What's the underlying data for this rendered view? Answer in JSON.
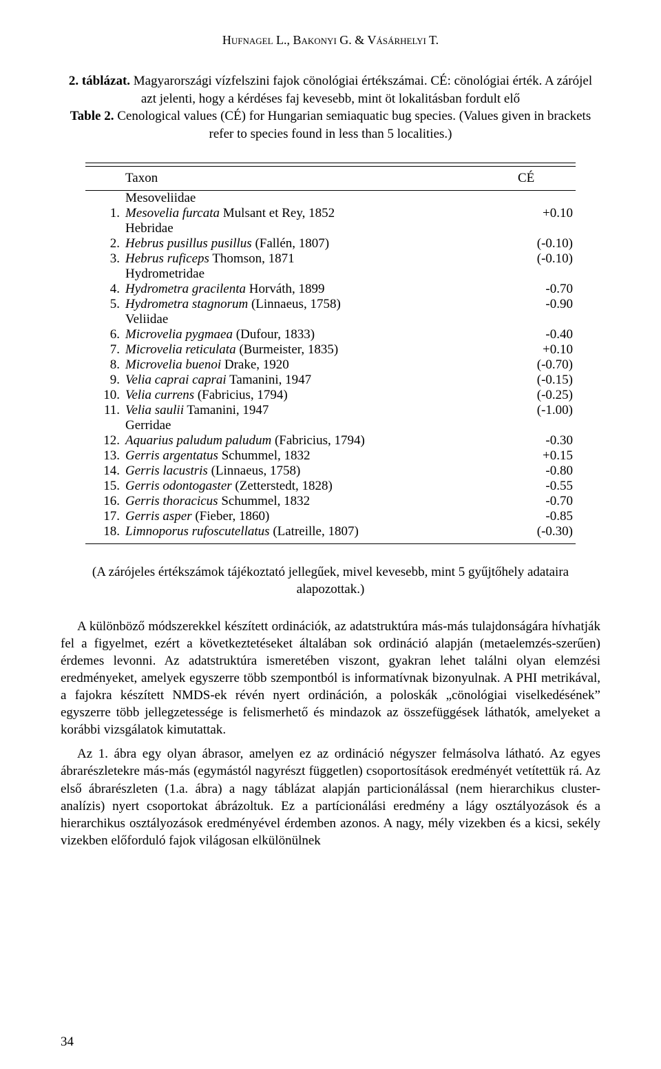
{
  "running_head": "Hufnagel L., Bakonyi G. & Vásárhelyi T.",
  "caption": {
    "hu_title": "2. táblázat.",
    "hu_text": " Magyarországi vízfelszini fajok cönológiai értékszámai. CÉ: cönológiai érték. A zárójel azt jelenti, hogy a kérdéses faj kevesebb, mint öt lokalitásban fordult elő",
    "en_title": "Table 2.",
    "en_text": " Cenological values (CÉ) for Hungarian semiaquatic bug species. (Values given in brackets refer to species found in less than 5 localities.)"
  },
  "table": {
    "head_taxon": "Taxon",
    "head_ce": "CÉ",
    "rows": [
      {
        "kind": "family",
        "label": "Mesoveliidae"
      },
      {
        "kind": "sp",
        "num": "1.",
        "species": "Mesovelia furcata",
        "authority": " Mulsant et Rey, 1852",
        "ce": "+0.10"
      },
      {
        "kind": "family",
        "label": "Hebridae"
      },
      {
        "kind": "sp",
        "num": "2.",
        "species": "Hebrus pusillus pusillus",
        "authority": " (Fallén, 1807)",
        "ce": "(-0.10)"
      },
      {
        "kind": "sp",
        "num": "3.",
        "species": "Hebrus ruficeps",
        "authority": " Thomson, 1871",
        "ce": "(-0.10)"
      },
      {
        "kind": "family",
        "label": "Hydrometridae"
      },
      {
        "kind": "sp",
        "num": "4.",
        "species": "Hydrometra gracilenta",
        "authority": " Horváth, 1899",
        "ce": "-0.70"
      },
      {
        "kind": "sp",
        "num": "5.",
        "species": "Hydrometra stagnorum",
        "authority": " (Linnaeus, 1758)",
        "ce": "-0.90"
      },
      {
        "kind": "family",
        "label": "Veliidae"
      },
      {
        "kind": "sp",
        "num": "6.",
        "species": "Microvelia pygmaea",
        "authority": " (Dufour, 1833)",
        "ce": "-0.40"
      },
      {
        "kind": "sp",
        "num": "7.",
        "species": "Microvelia reticulata",
        "authority": " (Burmeister, 1835)",
        "ce": "+0.10"
      },
      {
        "kind": "sp",
        "num": "8.",
        "species": "Microvelia buenoi",
        "authority": " Drake, 1920",
        "ce": "(-0.70)"
      },
      {
        "kind": "sp",
        "num": "9.",
        "species": "Velia caprai caprai",
        "authority": " Tamanini, 1947",
        "ce": "(-0.15)"
      },
      {
        "kind": "sp",
        "num": "10.",
        "species": "Velia currens",
        "authority": " (Fabricius, 1794)",
        "ce": "(-0.25)"
      },
      {
        "kind": "sp",
        "num": "11.",
        "species": "Velia saulii",
        "authority": " Tamanini, 1947",
        "ce": "(-1.00)"
      },
      {
        "kind": "family",
        "label": "Gerridae"
      },
      {
        "kind": "sp",
        "num": "12.",
        "species": "Aquarius paludum paludum",
        "authority": " (Fabricius, 1794)",
        "ce": "-0.30"
      },
      {
        "kind": "sp",
        "num": "13.",
        "species": "Gerris argentatus",
        "authority": " Schummel, 1832",
        "ce": "+0.15"
      },
      {
        "kind": "sp",
        "num": "14.",
        "species": "Gerris lacustris",
        "authority": " (Linnaeus, 1758)",
        "ce": "-0.80"
      },
      {
        "kind": "sp",
        "num": "15.",
        "species": "Gerris odontogaster",
        "authority": " (Zetterstedt, 1828)",
        "ce": "-0.55"
      },
      {
        "kind": "sp",
        "num": "16.",
        "species": "Gerris thoracicus",
        "authority": " Schummel, 1832",
        "ce": "-0.70"
      },
      {
        "kind": "sp",
        "num": "17.",
        "species": "Gerris asper",
        "authority": " (Fieber, 1860)",
        "ce": "-0.85"
      },
      {
        "kind": "sp",
        "num": "18.",
        "species": "Limnoporus rufoscutellatus",
        "authority": " (Latreille, 1807)",
        "ce": "(-0.30)"
      }
    ]
  },
  "footnote": "(A zárójeles értékszámok tájékoztató jellegűek, mivel kevesebb, mint 5 gyűjtőhely adataira alapozottak.)",
  "paragraphs": [
    "A különböző módszerekkel készített ordinációk, az adatstruktúra más-más tulajdonságára hívhatják fel a figyelmet, ezért a következtetéseket általában sok ordináció alapján (metaelemzés-szerűen) érdemes levonni. Az adatstruktúra ismeretében viszont, gyakran lehet találni olyan elemzési eredményeket, amelyek egyszerre több szempontból is informatívnak bizonyulnak. A PHI metrikával, a fajokra készített NMDS-ek révén nyert ordináción, a poloskák „cönológiai viselkedésének” egyszerre több jellegzetessége is felismerhető és mindazok az összefüggések láthatók, amelyeket a korábbi vizsgálatok kimutattak.",
    "Az 1. ábra egy olyan ábrasor, amelyen ez az ordináció négyszer felmásolva látható. Az egyes ábrarészletekre más-más (egymástól nagyrészt független) csoportosítások eredményét vetítettük rá. Az első ábrarészleten (1.a. ábra) a nagy táblázat alapján particionálással (nem hierarchikus cluster-analízis) nyert csoportokat ábrázoltuk. Ez a partícionálási eredmény a lágy osztályozások és a hierarchikus osztályozások eredményével érdemben azonos. A nagy, mély vizekben és a kicsi, sekély vizekben előforduló fajok világosan elkülönülnek"
  ],
  "page_number": "34"
}
